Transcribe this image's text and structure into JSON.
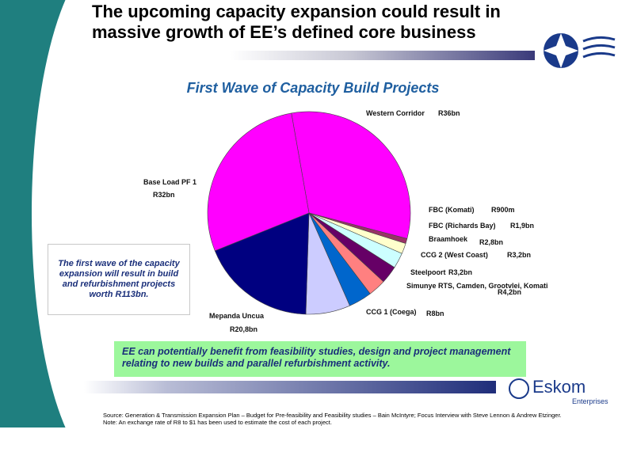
{
  "slide": {
    "title": "The upcoming capacity expansion could result in massive growth of EE’s defined core business",
    "subtitle": "First Wave of Capacity Build Projects",
    "callout": "The first wave of the capacity expansion will result in build and refurbishment projects worth R113bn.",
    "benefit_text": "EE can potentially benefit from feasibility studies, design and project management relating to new builds and parallel refurbishment activity.",
    "source_line1": "Source: Generation & Transmission Expansion Plan – Budget for Pre-feasibility and Feasibility studies – Bain McIntyre; Focus Interview with Steve Lennon & Andrew    Etzinger.",
    "source_line2": "Note: An exchange rate of R8 to $1 has been used to estimate the cost of each project.",
    "logo_name": "Eskom",
    "logo_sub": "Enterprises"
  },
  "chart_data": {
    "type": "pie",
    "title": "First Wave of Capacity Build Projects",
    "slices": [
      {
        "name": "Western Corridor",
        "label": "R36bn",
        "value": 36,
        "color": "#ff00ff"
      },
      {
        "name": "FBC (Komati)",
        "label": "R900m",
        "value": 0.9,
        "color": "#993366"
      },
      {
        "name": "FBC (Richards Bay)",
        "label": "R1,9bn",
        "value": 1.9,
        "color": "#ffffcc"
      },
      {
        "name": "Braamhoek",
        "label": "R2,8bn",
        "value": 2.8,
        "color": "#ccffff"
      },
      {
        "name": "CCG 2 (West Coast)",
        "label": "R3,2bn",
        "value": 3.2,
        "color": "#660066"
      },
      {
        "name": "Steelpoort",
        "label": "R3,2bn",
        "value": 3.2,
        "color": "#ff8080"
      },
      {
        "name": "Simunye RTS, Camden, Grootvlei, Komati",
        "label": "R4,2bn",
        "value": 4.2,
        "color": "#0066cc"
      },
      {
        "name": "CCG 1 (Coega)",
        "label": "R8bn",
        "value": 8,
        "color": "#ccccff"
      },
      {
        "name": "Mepanda Uncua",
        "label": "R20,8bn",
        "value": 20.8,
        "color": "#000080"
      },
      {
        "name": "Base Load PF 1",
        "label": "R32bn",
        "value": 32,
        "color": "#ff00ff"
      }
    ]
  }
}
